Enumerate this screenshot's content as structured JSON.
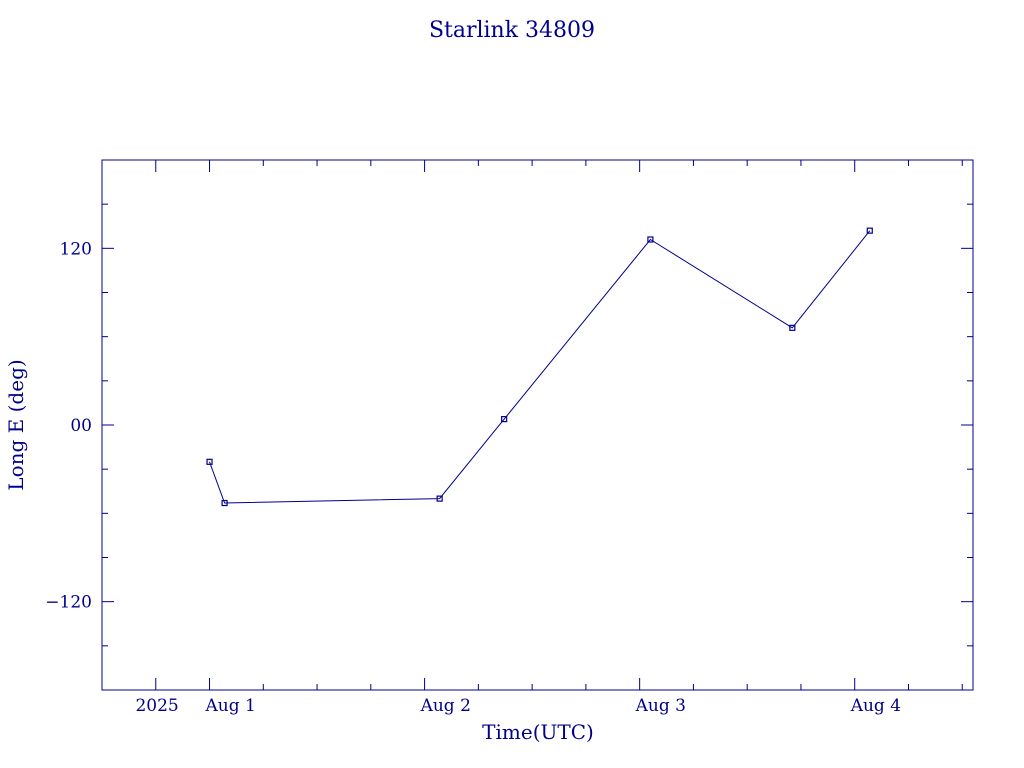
{
  "chart_data": {
    "type": "line",
    "title": "Starlink 34809",
    "xlabel": "Time(UTC)",
    "ylabel": "Long E (deg)",
    "color": "#00008b",
    "x_unit": "days since 2025 Aug 1 00:00 UTC",
    "xlim": [
      -0.5,
      3.55
    ],
    "ylim": [
      -180,
      180
    ],
    "x_ticks": [
      {
        "value": -0.25,
        "label": "2025"
      },
      {
        "value": 0,
        "label": "Aug  1"
      },
      {
        "value": 1,
        "label": "Aug  2"
      },
      {
        "value": 2,
        "label": "Aug  3"
      },
      {
        "value": 3,
        "label": "Aug  4"
      }
    ],
    "x_minor_ticks": [
      0.25,
      0.5,
      0.75,
      1.25,
      1.5,
      1.75,
      2.25,
      2.5,
      2.75,
      3.25,
      3.5
    ],
    "y_ticks": [
      {
        "value": 120,
        "label": "120"
      },
      {
        "value": 0,
        "label": "00"
      },
      {
        "value": -120,
        "label": "−120"
      }
    ],
    "y_minor_ticks": [
      150,
      90,
      60,
      30,
      -30,
      -60,
      -90,
      -150
    ],
    "series": [
      {
        "name": "",
        "x": [
          0.0,
          0.07,
          1.07,
          1.37,
          2.05,
          2.71,
          3.07
        ],
        "y": [
          -25,
          -53,
          -50,
          4,
          126,
          66,
          132
        ]
      }
    ]
  }
}
